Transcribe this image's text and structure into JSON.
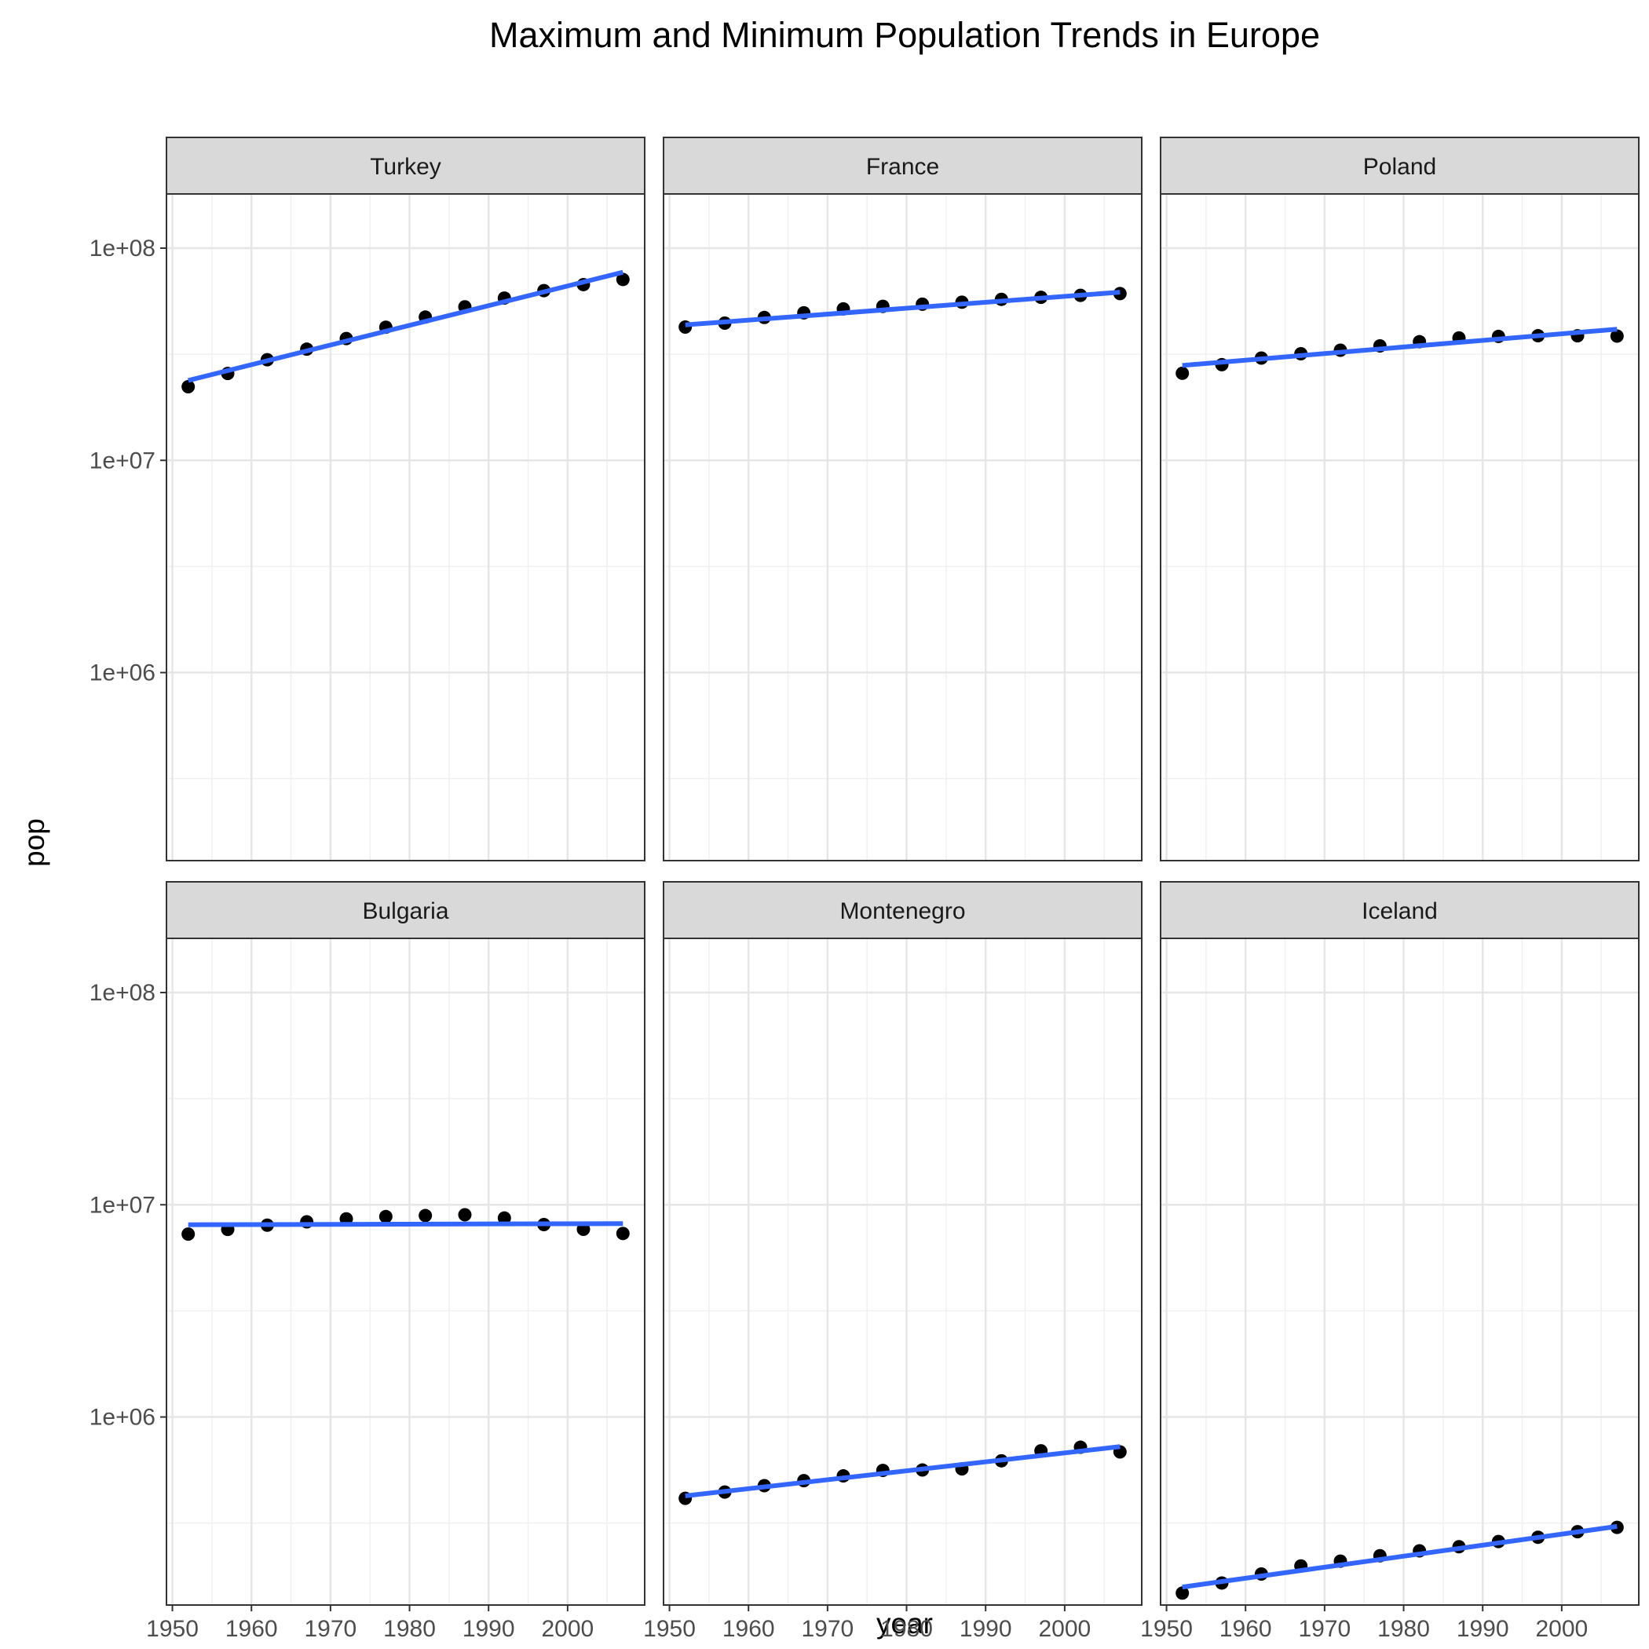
{
  "chart_data": {
    "type": "scatter",
    "title": "Maximum and Minimum Population Trends in Europe",
    "xlabel": "year",
    "ylabel": "pop",
    "y_scale": "log10",
    "ylim": [
      130000,
      180000000
    ],
    "xlim": [
      1949.25,
      2009.75
    ],
    "x_ticks": [
      1950,
      1960,
      1970,
      1980,
      1990,
      2000
    ],
    "x_tick_labels": [
      "1950",
      "1960",
      "1970",
      "1980",
      "1990",
      "2000"
    ],
    "y_ticks": [
      1000000,
      10000000,
      100000000
    ],
    "y_tick_labels": [
      "1e+06",
      "1e+07",
      "1e+08"
    ],
    "grid": true,
    "point_color": "#000000",
    "line_color": "#3366ff",
    "strip_fill": "#d9d9d9",
    "facets": [
      {
        "label": "Turkey",
        "x": [
          1952,
          1957,
          1962,
          1967,
          1972,
          1977,
          1982,
          1987,
          1992,
          1997,
          2002,
          2007
        ],
        "pop": [
          22235677,
          25670939,
          29788695,
          33411317,
          37492953,
          42404033,
          47328791,
          52881328,
          58179144,
          63047647,
          67308928,
          71158647
        ],
        "trend": {
          "x": [
            1952,
            2007
          ],
          "pop": [
            23800000,
            77000000
          ]
        }
      },
      {
        "label": "France",
        "x": [
          1952,
          1957,
          1962,
          1967,
          1972,
          1977,
          1982,
          1987,
          1992,
          1997,
          2002,
          2007
        ],
        "pop": [
          42459667,
          44310863,
          47124000,
          49569000,
          51732000,
          53165019,
          54433565,
          55630100,
          57374179,
          58623428,
          59925035,
          61083916
        ],
        "trend": {
          "x": [
            1952,
            2007
          ],
          "pop": [
            43500000,
            62000000
          ]
        }
      },
      {
        "label": "Poland",
        "x": [
          1952,
          1957,
          1962,
          1967,
          1972,
          1977,
          1982,
          1987,
          1992,
          1997,
          2002,
          2007
        ],
        "pop": [
          25730551,
          28235346,
          30329617,
          31785378,
          33039545,
          34621254,
          36227381,
          37740710,
          38370697,
          38654957,
          38625976,
          38518241
        ],
        "trend": {
          "x": [
            1952,
            2007
          ],
          "pop": [
            28000000,
            41500000
          ]
        }
      },
      {
        "label": "Bulgaria",
        "x": [
          1952,
          1957,
          1962,
          1967,
          1972,
          1977,
          1982,
          1987,
          1992,
          1997,
          2002,
          2007
        ],
        "pop": [
          7274900,
          7651254,
          8012946,
          8310226,
          8576200,
          8797022,
          8892098,
          8971958,
          8658506,
          8066057,
          7661799,
          7322858
        ],
        "trend": {
          "x": [
            1952,
            2007
          ],
          "pop": [
            8050000,
            8150000
          ]
        }
      },
      {
        "label": "Montenegro",
        "x": [
          1952,
          1957,
          1962,
          1967,
          1972,
          1977,
          1982,
          1987,
          1992,
          1997,
          2002,
          2007
        ],
        "pop": [
          413834,
          442829,
          474528,
          501035,
          527678,
          560073,
          562548,
          569473,
          621621,
          692651,
          720230,
          684736
        ],
        "trend": {
          "x": [
            1952,
            2007
          ],
          "pop": [
            425000,
            725000
          ]
        }
      },
      {
        "label": "Iceland",
        "x": [
          1952,
          1957,
          1962,
          1967,
          1972,
          1977,
          1982,
          1987,
          1992,
          1997,
          2002,
          2007
        ],
        "pop": [
          147962,
          165110,
          182053,
          198676,
          209275,
          221823,
          233997,
          244676,
          259012,
          271192,
          288030,
          301931
        ],
        "trend": {
          "x": [
            1952,
            2007
          ],
          "pop": [
            158000,
            305000
          ]
        }
      }
    ]
  }
}
